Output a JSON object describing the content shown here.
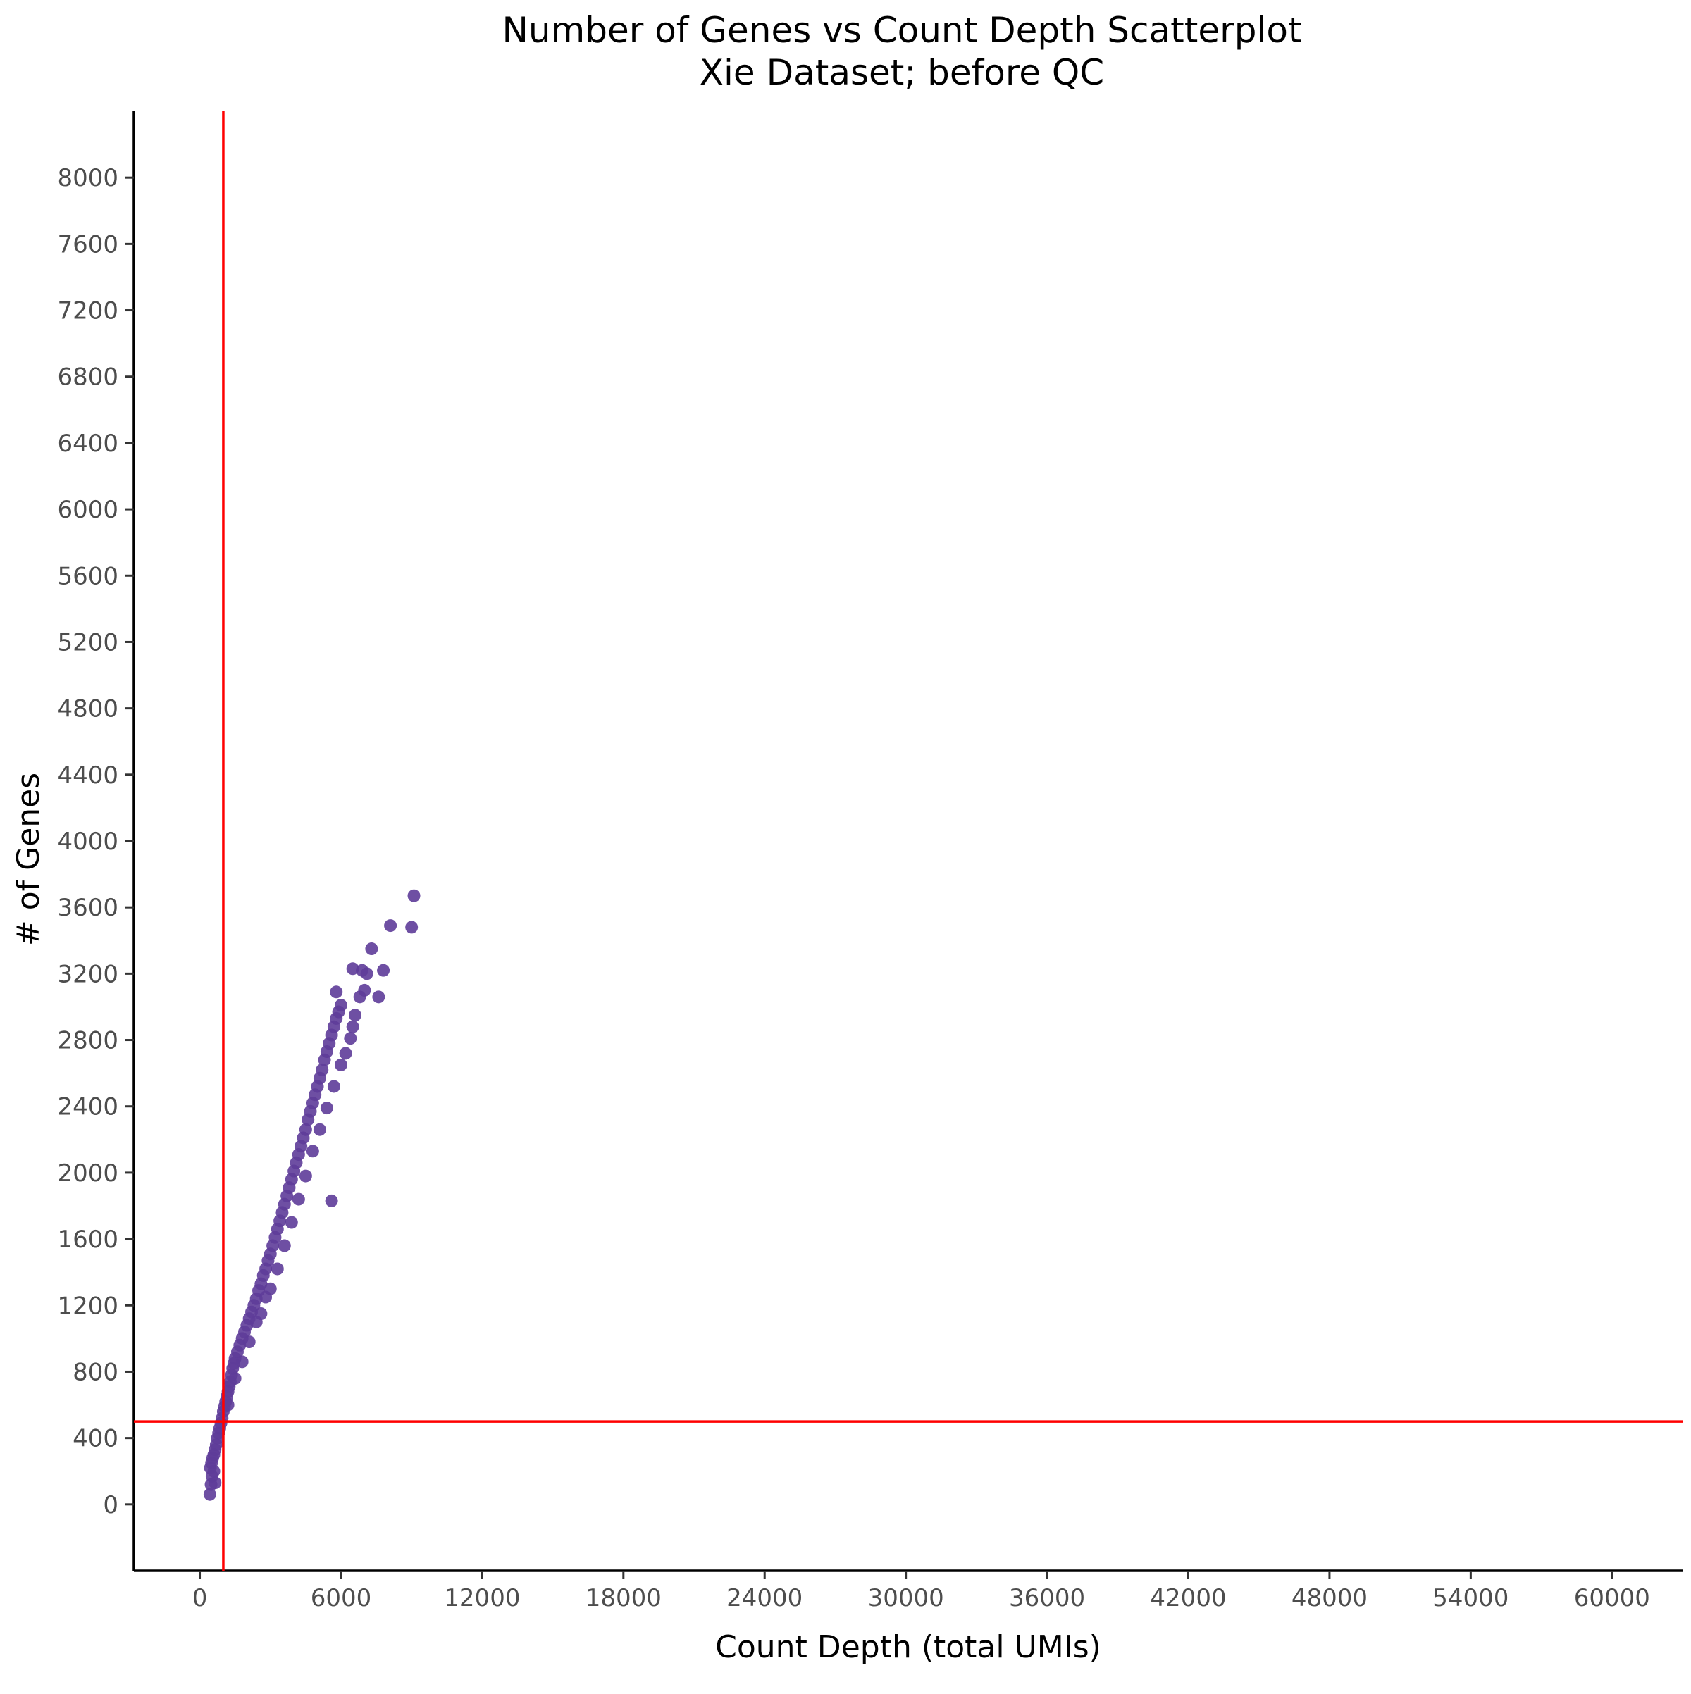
{
  "chart_data": {
    "type": "scatter",
    "title": "Number of Genes vs Count Depth Scatterplot",
    "subtitle": "Xie Dataset; before QC",
    "xlabel": "Count Depth (total UMIs)",
    "ylabel": "# of Genes",
    "xlim": [
      -2800,
      63000
    ],
    "ylim": [
      -400,
      8400
    ],
    "x_ticks": [
      0,
      6000,
      12000,
      18000,
      24000,
      30000,
      36000,
      42000,
      48000,
      54000,
      60000
    ],
    "y_ticks": [
      0,
      400,
      800,
      1200,
      1600,
      2000,
      2400,
      2800,
      3200,
      3600,
      4000,
      4400,
      4800,
      5200,
      5600,
      6000,
      6400,
      6800,
      7200,
      7600,
      8000
    ],
    "x_tick_labels": [
      "0",
      "6000",
      "12000",
      "18000",
      "24000",
      "30000",
      "36000",
      "42000",
      "48000",
      "54000",
      "60000"
    ],
    "y_tick_labels": [
      "0",
      "400",
      "800",
      "1200",
      "1600",
      "2000",
      "2400",
      "2800",
      "3200",
      "3600",
      "4000",
      "4400",
      "4800",
      "5200",
      "5600",
      "6000",
      "6400",
      "6800",
      "7200",
      "7600",
      "8000"
    ],
    "grid": false,
    "legend": "none",
    "point_color": "#5e3c99",
    "threshold_lines": {
      "color": "#ff0000",
      "vertical_x": 1000,
      "horizontal_y": 500
    },
    "series": [
      {
        "points": [
          [
            430,
            60
          ],
          [
            480,
            120
          ],
          [
            650,
            130
          ],
          [
            520,
            170
          ],
          [
            600,
            200
          ],
          [
            450,
            220
          ],
          [
            500,
            250
          ],
          [
            550,
            280
          ],
          [
            600,
            300
          ],
          [
            650,
            330
          ],
          [
            700,
            360
          ],
          [
            750,
            400
          ],
          [
            800,
            430
          ],
          [
            850,
            460
          ],
          [
            900,
            490
          ],
          [
            950,
            520
          ],
          [
            1000,
            560
          ],
          [
            1050,
            590
          ],
          [
            1100,
            620
          ],
          [
            1150,
            650
          ],
          [
            1200,
            680
          ],
          [
            1250,
            710
          ],
          [
            1300,
            740
          ],
          [
            1350,
            780
          ],
          [
            1400,
            820
          ],
          [
            1450,
            850
          ],
          [
            1500,
            880
          ],
          [
            1600,
            920
          ],
          [
            1700,
            960
          ],
          [
            1800,
            1000
          ],
          [
            1900,
            1040
          ],
          [
            2000,
            1080
          ],
          [
            2100,
            1120
          ],
          [
            2200,
            1160
          ],
          [
            2300,
            1200
          ],
          [
            2400,
            1240
          ],
          [
            2500,
            1290
          ],
          [
            2600,
            1330
          ],
          [
            2700,
            1380
          ],
          [
            2800,
            1420
          ],
          [
            2900,
            1470
          ],
          [
            3000,
            1510
          ],
          [
            3100,
            1560
          ],
          [
            3200,
            1610
          ],
          [
            3300,
            1660
          ],
          [
            3400,
            1710
          ],
          [
            3500,
            1760
          ],
          [
            3600,
            1810
          ],
          [
            3700,
            1860
          ],
          [
            3800,
            1910
          ],
          [
            3900,
            1960
          ],
          [
            4000,
            2010
          ],
          [
            4100,
            2060
          ],
          [
            4200,
            2110
          ],
          [
            4300,
            2160
          ],
          [
            4400,
            2210
          ],
          [
            4500,
            2260
          ],
          [
            4600,
            2320
          ],
          [
            4700,
            2370
          ],
          [
            4800,
            2420
          ],
          [
            4900,
            2470
          ],
          [
            5000,
            2520
          ],
          [
            5100,
            2570
          ],
          [
            5200,
            2620
          ],
          [
            5300,
            2680
          ],
          [
            5400,
            2730
          ],
          [
            5500,
            2780
          ],
          [
            5600,
            2830
          ],
          [
            5700,
            2880
          ],
          [
            5800,
            2930
          ],
          [
            5900,
            2970
          ],
          [
            6000,
            3010
          ],
          [
            1200,
            600
          ],
          [
            1500,
            760
          ],
          [
            1800,
            860
          ],
          [
            2100,
            980
          ],
          [
            2400,
            1100
          ],
          [
            2600,
            1150
          ],
          [
            2800,
            1250
          ],
          [
            3000,
            1300
          ],
          [
            3300,
            1420
          ],
          [
            3600,
            1560
          ],
          [
            3900,
            1700
          ],
          [
            4200,
            1840
          ],
          [
            4500,
            1980
          ],
          [
            4800,
            2130
          ],
          [
            5100,
            2260
          ],
          [
            5400,
            2390
          ],
          [
            5700,
            2520
          ],
          [
            6000,
            2650
          ],
          [
            6200,
            2720
          ],
          [
            6400,
            2810
          ],
          [
            6500,
            2880
          ],
          [
            6600,
            2950
          ],
          [
            6800,
            3060
          ],
          [
            7000,
            3100
          ],
          [
            7100,
            3200
          ],
          [
            7300,
            3350
          ],
          [
            7800,
            3220
          ],
          [
            7600,
            3060
          ],
          [
            6900,
            3220
          ],
          [
            6500,
            3230
          ],
          [
            5800,
            3090
          ],
          [
            5600,
            1830
          ],
          [
            8100,
            3490
          ],
          [
            9000,
            3480
          ],
          [
            9100,
            3670
          ]
        ]
      }
    ]
  }
}
